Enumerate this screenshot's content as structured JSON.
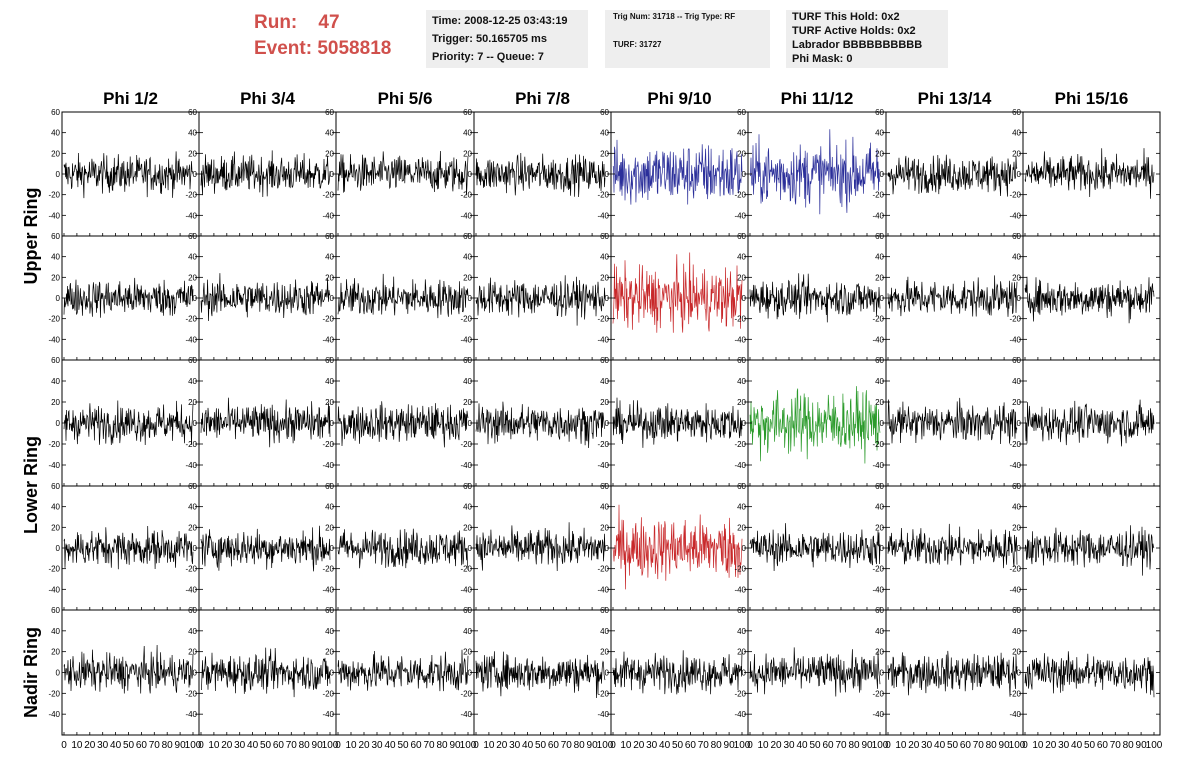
{
  "header": {
    "run_label": "Run:",
    "run_value": "47",
    "event_label": "Event:",
    "event_value": "5058818",
    "time": "Time: 2008-12-25 03:43:19",
    "trigger": "Trigger: 50.165705 ms",
    "priority": "Priority: 7 -- Queue: 7",
    "trig_num": "Trig Num: 31718 -- Trig Type: RF",
    "turf": "TURF: 31727",
    "turf_this_hold": "TURF This Hold: 0x2",
    "turf_active_holds": "TURF Active Holds: 0x2",
    "labrador": "Labrador BBBBBBBBBB",
    "phi_mask": "Phi Mask: 0"
  },
  "colors": {
    "run_text": "#d0504c",
    "box_bg": "#eeeeee",
    "trace_default": "#000000",
    "trace_blue": "#2b2f9a",
    "trace_red": "#c8282a",
    "trace_green": "#2a9a2a"
  },
  "chart_data": {
    "type": "line",
    "columns": [
      "Phi 1/2",
      "Phi 3/4",
      "Phi 5/6",
      "Phi 7/8",
      "Phi 9/10",
      "Phi 11/12",
      "Phi 13/14",
      "Phi 15/16"
    ],
    "rows": [
      "Upper Ring",
      "Lower Ring",
      "Nadir Ring"
    ],
    "panel_rows": 5,
    "ylim": [
      -60,
      60
    ],
    "yticks": [
      -40,
      -20,
      0,
      20,
      40,
      60
    ],
    "xlim": [
      0,
      100
    ],
    "xticks": [
      0,
      10,
      20,
      30,
      40,
      50,
      60,
      70,
      80,
      90,
      100
    ],
    "n_samples": 260,
    "highlighted": [
      {
        "row": 0,
        "col": 4,
        "color": "blue"
      },
      {
        "row": 0,
        "col": 5,
        "color": "blue"
      },
      {
        "row": 1,
        "col": 4,
        "color": "red"
      },
      {
        "row": 2,
        "col": 5,
        "color": "green"
      },
      {
        "row": 3,
        "col": 4,
        "color": "red"
      }
    ]
  }
}
